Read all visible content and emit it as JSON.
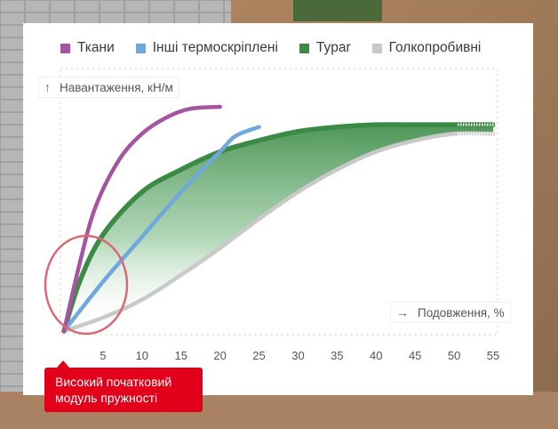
{
  "legend": [
    {
      "label": "Ткани",
      "color": "#a5559f"
    },
    {
      "label": "Інші термоскріплені",
      "color": "#6fa8dc"
    },
    {
      "label": "Typar",
      "color": "#3b8a45"
    },
    {
      "label": "Голкопробивні",
      "color": "#c9c9c9"
    }
  ],
  "callout": {
    "line1": "Високий початковий",
    "line2": "модуль пружності"
  },
  "chart_data": {
    "type": "line",
    "xlabel": "Подовження, %",
    "ylabel": "Навантаження, кН/м",
    "x_ticks": [
      "5",
      "10",
      "15",
      "20",
      "25",
      "30",
      "35",
      "40",
      "45",
      "50",
      "55"
    ],
    "xlim": [
      0,
      55
    ],
    "grid": false,
    "legend_position": "top",
    "series": [
      {
        "name": "Ткани",
        "color": "#a5559f",
        "x": [
          0,
          2,
          4,
          7,
          10,
          13,
          16,
          20
        ],
        "y": [
          0,
          30,
          55,
          76,
          88,
          95,
          99,
          100
        ]
      },
      {
        "name": "Інші термоскріплені",
        "color": "#6fa8dc",
        "x": [
          0,
          5,
          10,
          15,
          20,
          22,
          25
        ],
        "y": [
          0,
          22,
          42,
          62,
          80,
          87,
          91
        ]
      },
      {
        "name": "Typar",
        "color": "#3b8a45",
        "x": [
          0,
          2,
          5,
          10,
          15,
          20,
          25,
          30,
          35,
          40,
          45,
          50,
          55
        ],
        "y": [
          0,
          22,
          43,
          62,
          72,
          80,
          85,
          89,
          91,
          92,
          92,
          92,
          92
        ]
      },
      {
        "name": "Голкопробивні",
        "color": "#c9c9c9",
        "x": [
          0,
          5,
          10,
          15,
          20,
          25,
          30,
          35,
          40,
          45,
          50,
          55
        ],
        "y": [
          0,
          6,
          14,
          25,
          37,
          50,
          62,
          72,
          80,
          85,
          88,
          88
        ]
      }
    ]
  }
}
